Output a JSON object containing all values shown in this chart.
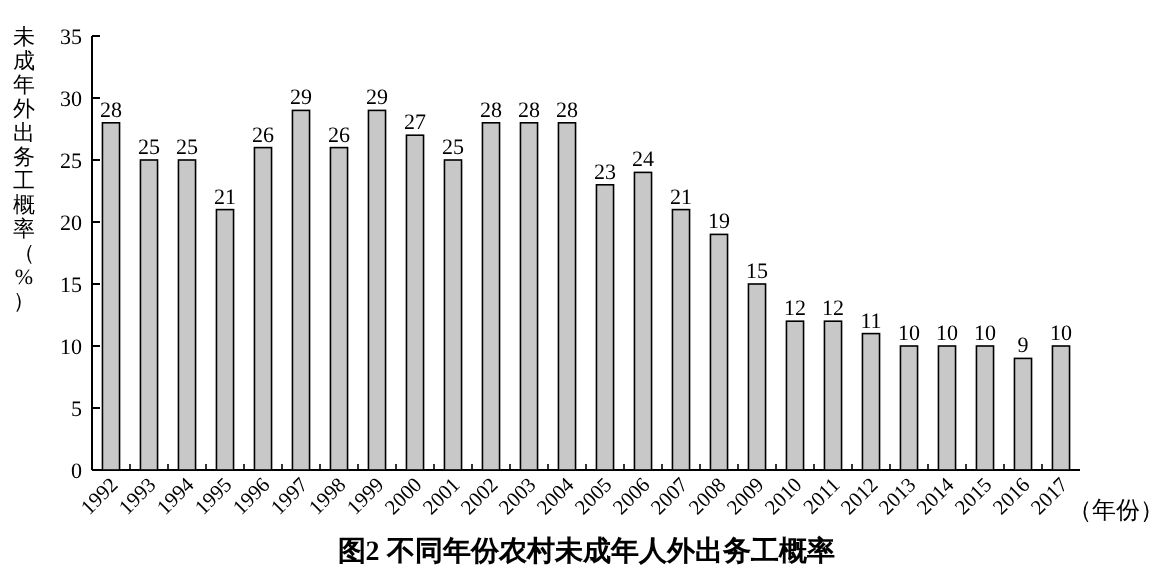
{
  "chart_data": {
    "type": "bar",
    "title": "图2 不同年份农村未成年人外出务工概率",
    "ylabel": "未成年外出务工概率（%）",
    "xlabel": "（年份）",
    "categories": [
      "1992",
      "1993",
      "1994",
      "1995",
      "1996",
      "1997",
      "1998",
      "1999",
      "2000",
      "2001",
      "2002",
      "2003",
      "2004",
      "2005",
      "2006",
      "2007",
      "2008",
      "2009",
      "2010",
      "2011",
      "2012",
      "2013",
      "2014",
      "2015",
      "2016",
      "2017"
    ],
    "values": [
      28,
      25,
      25,
      21,
      26,
      29,
      26,
      29,
      27,
      25,
      28,
      28,
      28,
      23,
      24,
      21,
      19,
      15,
      12,
      12,
      11,
      10,
      10,
      10,
      9,
      10
    ],
    "color": "#c8c8c8",
    "ylim": [
      0,
      35
    ],
    "yticks": [
      0,
      5,
      10,
      15,
      20,
      25,
      30,
      35
    ],
    "data_labels": true
  }
}
